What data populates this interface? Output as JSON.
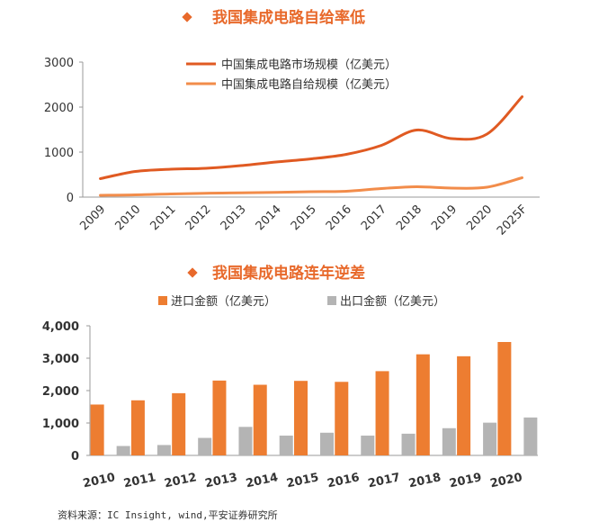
{
  "chart_data": [
    {
      "type": "line",
      "title": "我国集成电路自给率低",
      "x": [
        "2009",
        "2010",
        "2011",
        "2012",
        "2013",
        "2014",
        "2015",
        "2016",
        "2017",
        "2018",
        "2019",
        "2020",
        "2025F"
      ],
      "ylim": [
        0,
        3000
      ],
      "yticks": [
        "0",
        "1000",
        "2000",
        "3000"
      ],
      "grid": false,
      "legend_position": "top-right",
      "series": [
        {
          "name": "中国集成电路市场规模（亿美元）",
          "color": "#E05A22",
          "values": [
            410,
            570,
            620,
            640,
            700,
            780,
            850,
            950,
            1150,
            1490,
            1300,
            1400,
            2230
          ]
        },
        {
          "name": "中国集成电路自给规模（亿美元）",
          "color": "#F28C4A",
          "values": [
            40,
            50,
            70,
            85,
            95,
            105,
            120,
            130,
            190,
            230,
            200,
            220,
            430
          ]
        }
      ]
    },
    {
      "type": "bar",
      "title": "我国集成电路连年逆差",
      "categories": [
        "2010",
        "2011",
        "2012",
        "2013",
        "2014",
        "2015",
        "2016",
        "2017",
        "2018",
        "2019",
        "2020"
      ],
      "ylim": [
        0,
        4000
      ],
      "yticks": [
        "0",
        "1,000",
        "2,000",
        "3,000",
        "4,000"
      ],
      "grid": false,
      "legend_position": "top",
      "series": [
        {
          "name": "进口金额（亿美元）",
          "color": "#ED7D31",
          "values": [
            1570,
            1700,
            1920,
            2310,
            2180,
            2300,
            2270,
            2600,
            3120,
            3060,
            3500
          ]
        },
        {
          "name": "出口金额（亿美元）",
          "color": "#B4B4B4",
          "values": [
            290,
            320,
            540,
            880,
            610,
            700,
            610,
            670,
            840,
            1010,
            1170
          ]
        }
      ]
    }
  ],
  "source": "资料来源：IC Insight, wind,平安证券研究所"
}
